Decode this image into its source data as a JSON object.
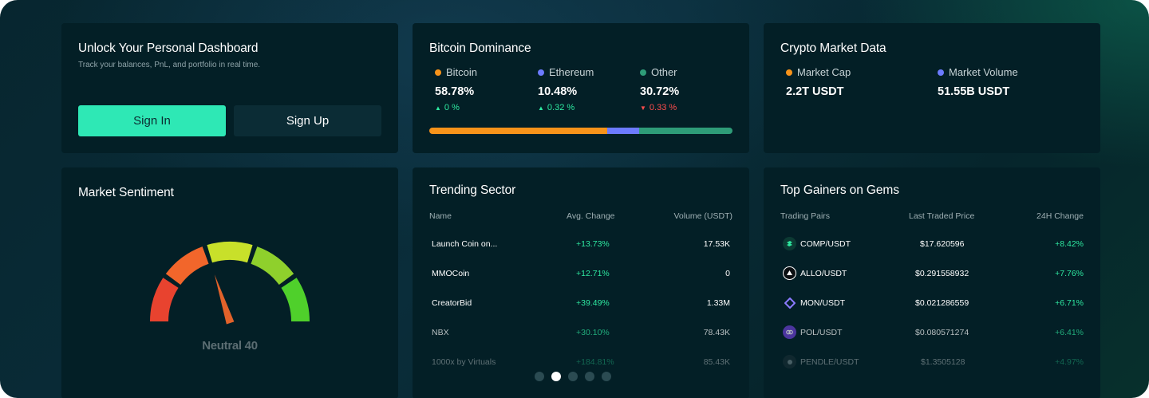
{
  "login": {
    "title": "Unlock Your Personal Dashboard",
    "subtitle": "Track your balances, PnL, and portfolio in real time.",
    "sign_in": "Sign In",
    "sign_up": "Sign Up"
  },
  "dominance": {
    "title": "Bitcoin Dominance",
    "items": [
      {
        "label": "Bitcoin",
        "value": "58.78%",
        "change": "0 %",
        "direction": "up",
        "color": "#f7931a"
      },
      {
        "label": "Ethereum",
        "value": "10.48%",
        "change": "0.32 %",
        "direction": "up",
        "color": "#6c7bff"
      },
      {
        "label": "Other",
        "value": "30.72%",
        "change": "0.33 %",
        "direction": "down",
        "color": "#2e9c78"
      }
    ],
    "bar_shares": [
      58.78,
      10.48,
      30.72
    ]
  },
  "market_data": {
    "title": "Crypto Market Data",
    "items": [
      {
        "label": "Market Cap",
        "value": "2.2T USDT",
        "color": "#f7931a"
      },
      {
        "label": "Market Volume",
        "value": "51.55B USDT",
        "color": "#6c7bff"
      }
    ]
  },
  "sentiment": {
    "title": "Market Sentiment",
    "label": "Neutral 40",
    "value": 40,
    "segment_colors": [
      "#e8432f",
      "#f2662b",
      "#c8e02a",
      "#8fd02c",
      "#4fd02b"
    ]
  },
  "trending": {
    "title": "Trending Sector",
    "headers": [
      "Name",
      "Avg. Change",
      "Volume (USDT)"
    ],
    "rows": [
      {
        "name": "Launch Coin on...",
        "change": "+13.73%",
        "volume": "17.53K"
      },
      {
        "name": "MMOCoin",
        "change": "+12.71%",
        "volume": "0"
      },
      {
        "name": "CreatorBid",
        "change": "+39.49%",
        "volume": "1.33M"
      },
      {
        "name": "NBX",
        "change": "+30.10%",
        "volume": "78.43K"
      },
      {
        "name": "1000x by Virtuals",
        "change": "+184.81%",
        "volume": "85.43K"
      }
    ]
  },
  "gainers": {
    "title": "Top Gainers on Gems",
    "headers": [
      "Trading Pairs",
      "Last Traded Price",
      "24H Change"
    ],
    "rows": [
      {
        "pair": "COMP/USDT",
        "price": "$17.620596",
        "change": "+8.42%",
        "icon": "comp-icon"
      },
      {
        "pair": "ALLO/USDT",
        "price": "$0.291558932",
        "change": "+7.76%",
        "icon": "allo-icon"
      },
      {
        "pair": "MON/USDT",
        "price": "$0.021286559",
        "change": "+6.71%",
        "icon": "mon-icon"
      },
      {
        "pair": "POL/USDT",
        "price": "$0.080571274",
        "change": "+6.41%",
        "icon": "pol-icon"
      },
      {
        "pair": "PENDLE/USDT",
        "price": "$1.3505128",
        "change": "+4.97%",
        "icon": "pendle-icon"
      }
    ]
  },
  "pager": {
    "count": 5,
    "active": 1
  }
}
